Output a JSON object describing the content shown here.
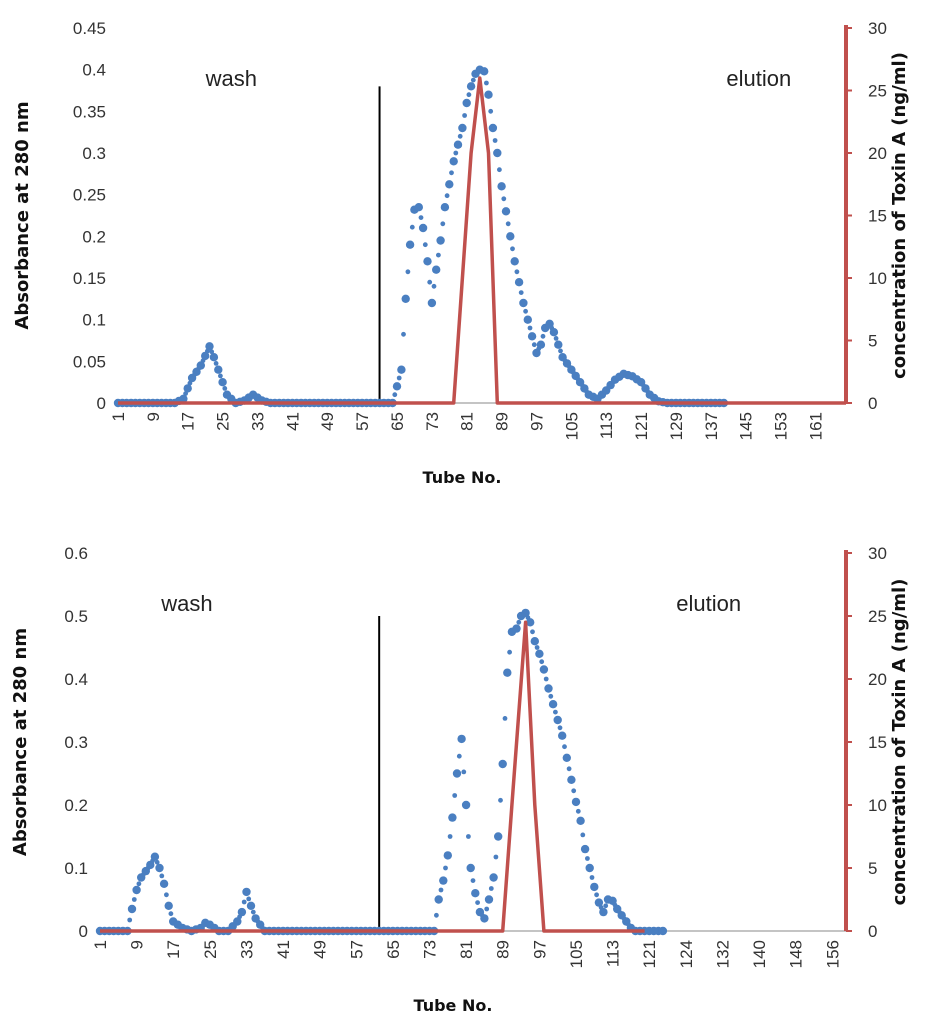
{
  "chart_data": [
    {
      "type": "line",
      "xlabel": "Tube No.",
      "ylabel": "Absorbance at 280 nm",
      "y2label": "concentration of Toxin A (ng/ml)",
      "ylim": [
        0,
        0.45
      ],
      "y2lim": [
        0,
        30
      ],
      "xlim": [
        1,
        168
      ],
      "yticks": [
        "0",
        "0.05",
        "0.1",
        "0.15",
        "0.2",
        "0.25",
        "0.3",
        "0.35",
        "0.4",
        "0.45"
      ],
      "y2ticks": [
        "0",
        "5",
        "10",
        "15",
        "20",
        "25",
        "30"
      ],
      "categories": [
        "1",
        "9",
        "17",
        "25",
        "33",
        "41",
        "49",
        "57",
        "65",
        "73",
        "81",
        "89",
        "97",
        "105",
        "113",
        "121",
        "129",
        "137",
        "145",
        "153",
        "161"
      ],
      "annotations": [
        {
          "text": "wash",
          "x": 27
        },
        {
          "text": "elution",
          "x": 148
        }
      ],
      "divider_x": 61,
      "divider_top": 0.38,
      "series": [
        {
          "axis": "left",
          "color": "#4a7fc1",
          "style": "dotted-markers",
          "points": [
            [
              1,
              0
            ],
            [
              14,
              0
            ],
            [
              16,
              0.005
            ],
            [
              18,
              0.03
            ],
            [
              20,
              0.045
            ],
            [
              22,
              0.068
            ],
            [
              23,
              0.055
            ],
            [
              24,
              0.04
            ],
            [
              26,
              0.01
            ],
            [
              28,
              0
            ],
            [
              30,
              0.003
            ],
            [
              32,
              0.01
            ],
            [
              34,
              0.003
            ],
            [
              36,
              0
            ],
            [
              64,
              0
            ],
            [
              66,
              0.04
            ],
            [
              67,
              0.125
            ],
            [
              68,
              0.19
            ],
            [
              69,
              0.232
            ],
            [
              70,
              0.235
            ],
            [
              71,
              0.21
            ],
            [
              72,
              0.17
            ],
            [
              73,
              0.12
            ],
            [
              74,
              0.16
            ],
            [
              75,
              0.195
            ],
            [
              76,
              0.235
            ],
            [
              78,
              0.29
            ],
            [
              79,
              0.31
            ],
            [
              80,
              0.33
            ],
            [
              81,
              0.36
            ],
            [
              82,
              0.38
            ],
            [
              83,
              0.395
            ],
            [
              84,
              0.4
            ],
            [
              85,
              0.398
            ],
            [
              86,
              0.37
            ],
            [
              87,
              0.33
            ],
            [
              88,
              0.3
            ],
            [
              89,
              0.26
            ],
            [
              90,
              0.23
            ],
            [
              91,
              0.2
            ],
            [
              92,
              0.17
            ],
            [
              93,
              0.145
            ],
            [
              94,
              0.12
            ],
            [
              95,
              0.1
            ],
            [
              96,
              0.08
            ],
            [
              97,
              0.06
            ],
            [
              98,
              0.07
            ],
            [
              99,
              0.09
            ],
            [
              100,
              0.095
            ],
            [
              101,
              0.085
            ],
            [
              102,
              0.07
            ],
            [
              103,
              0.055
            ],
            [
              105,
              0.04
            ],
            [
              107,
              0.025
            ],
            [
              109,
              0.01
            ],
            [
              111,
              0.005
            ],
            [
              113,
              0.015
            ],
            [
              115,
              0.028
            ],
            [
              117,
              0.035
            ],
            [
              119,
              0.032
            ],
            [
              121,
              0.025
            ],
            [
              123,
              0.01
            ],
            [
              125,
              0.002
            ],
            [
              127,
              0
            ],
            [
              140,
              0
            ]
          ]
        },
        {
          "axis": "right",
          "color": "#c0504d",
          "style": "line",
          "points": [
            [
              1,
              0
            ],
            [
              78,
              0
            ],
            [
              82,
              20
            ],
            [
              84,
              26
            ],
            [
              86,
              20
            ],
            [
              88,
              0
            ],
            [
              168,
              0
            ]
          ]
        }
      ]
    },
    {
      "type": "line",
      "xlabel": "Tube No.",
      "ylabel": "Absorbance at 280 nm",
      "y2label": "concentration of Toxin A (ng/ml)",
      "ylim": [
        0,
        0.6
      ],
      "y2lim": [
        0,
        30
      ],
      "xlim": [
        1,
        164
      ],
      "yticks": [
        "0",
        "0.1",
        "0.2",
        "0.3",
        "0.4",
        "0.5",
        "0.6"
      ],
      "y2ticks": [
        "0",
        "5",
        "10",
        "15",
        "20",
        "25",
        "30"
      ],
      "categories": [
        "1",
        "9",
        "17",
        "25",
        "33",
        "41",
        "49",
        "57",
        "65",
        "73",
        "81",
        "89",
        "97",
        "105",
        "113",
        "121",
        "124",
        "132",
        "140",
        "148",
        "156"
      ],
      "annotations": [
        {
          "text": "wash",
          "x": 20
        },
        {
          "text": "elution",
          "x": 134
        }
      ],
      "divider_x": 62,
      "divider_top": 0.5,
      "series": [
        {
          "axis": "left",
          "color": "#4a7fc1",
          "style": "dotted-markers",
          "points": [
            [
              1,
              0
            ],
            [
              7,
              0
            ],
            [
              8,
              0.035
            ],
            [
              9,
              0.065
            ],
            [
              10,
              0.085
            ],
            [
              11,
              0.095
            ],
            [
              12,
              0.105
            ],
            [
              13,
              0.118
            ],
            [
              14,
              0.1
            ],
            [
              15,
              0.075
            ],
            [
              16,
              0.04
            ],
            [
              17,
              0.015
            ],
            [
              19,
              0.005
            ],
            [
              21,
              0
            ],
            [
              23,
              0.005
            ],
            [
              24,
              0.013
            ],
            [
              25,
              0.01
            ],
            [
              27,
              0
            ],
            [
              29,
              0
            ],
            [
              31,
              0.015
            ],
            [
              32,
              0.03
            ],
            [
              33,
              0.062
            ],
            [
              34,
              0.04
            ],
            [
              35,
              0.02
            ],
            [
              37,
              0
            ],
            [
              74,
              0
            ],
            [
              75,
              0.05
            ],
            [
              76,
              0.08
            ],
            [
              77,
              0.12
            ],
            [
              78,
              0.18
            ],
            [
              79,
              0.25
            ],
            [
              80,
              0.305
            ],
            [
              81,
              0.2
            ],
            [
              82,
              0.1
            ],
            [
              83,
              0.06
            ],
            [
              84,
              0.03
            ],
            [
              85,
              0.02
            ],
            [
              86,
              0.05
            ],
            [
              87,
              0.085
            ],
            [
              88,
              0.15
            ],
            [
              89,
              0.265
            ],
            [
              90,
              0.41
            ],
            [
              91,
              0.475
            ],
            [
              92,
              0.48
            ],
            [
              93,
              0.5
            ],
            [
              94,
              0.505
            ],
            [
              95,
              0.49
            ],
            [
              96,
              0.46
            ],
            [
              97,
              0.44
            ],
            [
              98,
              0.415
            ],
            [
              99,
              0.385
            ],
            [
              100,
              0.36
            ],
            [
              101,
              0.335
            ],
            [
              102,
              0.31
            ],
            [
              103,
              0.275
            ],
            [
              104,
              0.24
            ],
            [
              105,
              0.205
            ],
            [
              106,
              0.175
            ],
            [
              107,
              0.13
            ],
            [
              108,
              0.1
            ],
            [
              109,
              0.07
            ],
            [
              110,
              0.045
            ],
            [
              111,
              0.03
            ],
            [
              112,
              0.05
            ],
            [
              113,
              0.048
            ],
            [
              114,
              0.035
            ],
            [
              115,
              0.025
            ],
            [
              116,
              0.015
            ],
            [
              117,
              0.005
            ],
            [
              118,
              0
            ],
            [
              124,
              0
            ]
          ]
        },
        {
          "axis": "right",
          "color": "#c0504d",
          "style": "line",
          "points": [
            [
              1,
              0
            ],
            [
              89,
              0
            ],
            [
              91,
              10
            ],
            [
              94,
              24.5
            ],
            [
              96,
              10
            ],
            [
              98,
              0
            ],
            [
              120,
              0
            ]
          ]
        }
      ]
    }
  ]
}
